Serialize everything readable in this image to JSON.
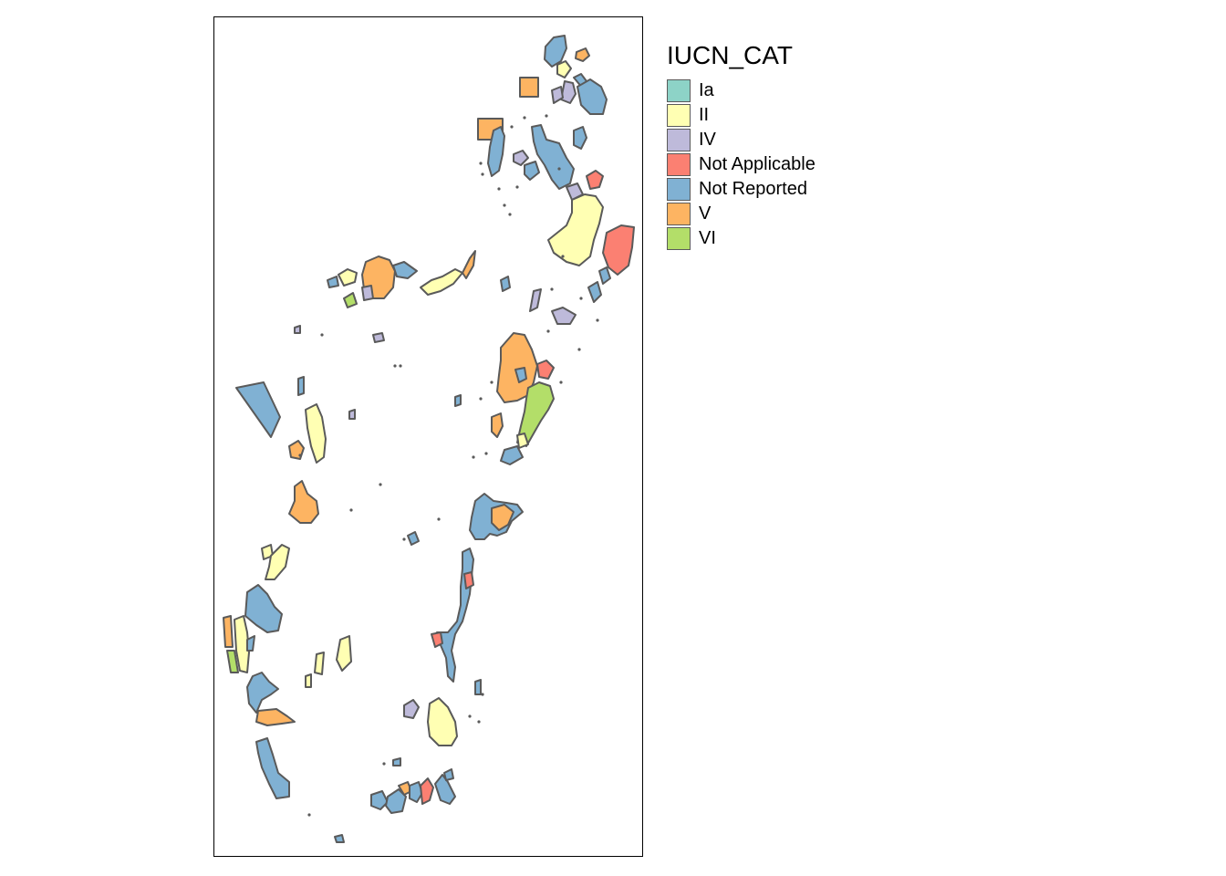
{
  "legend": {
    "title": "IUCN_CAT",
    "categories": [
      {
        "label": "Ia",
        "color": "#8DD3C7"
      },
      {
        "label": "II",
        "color": "#FFFFB3"
      },
      {
        "label": "IV",
        "color": "#BEBADA"
      },
      {
        "label": "Not Applicable",
        "color": "#FB8072"
      },
      {
        "label": "Not Reported",
        "color": "#80B1D3"
      },
      {
        "label": "V",
        "color": "#FDB462"
      },
      {
        "label": "VI",
        "color": "#B3DE69"
      }
    ]
  },
  "map": {
    "border_color": "#5a5a5a"
  }
}
